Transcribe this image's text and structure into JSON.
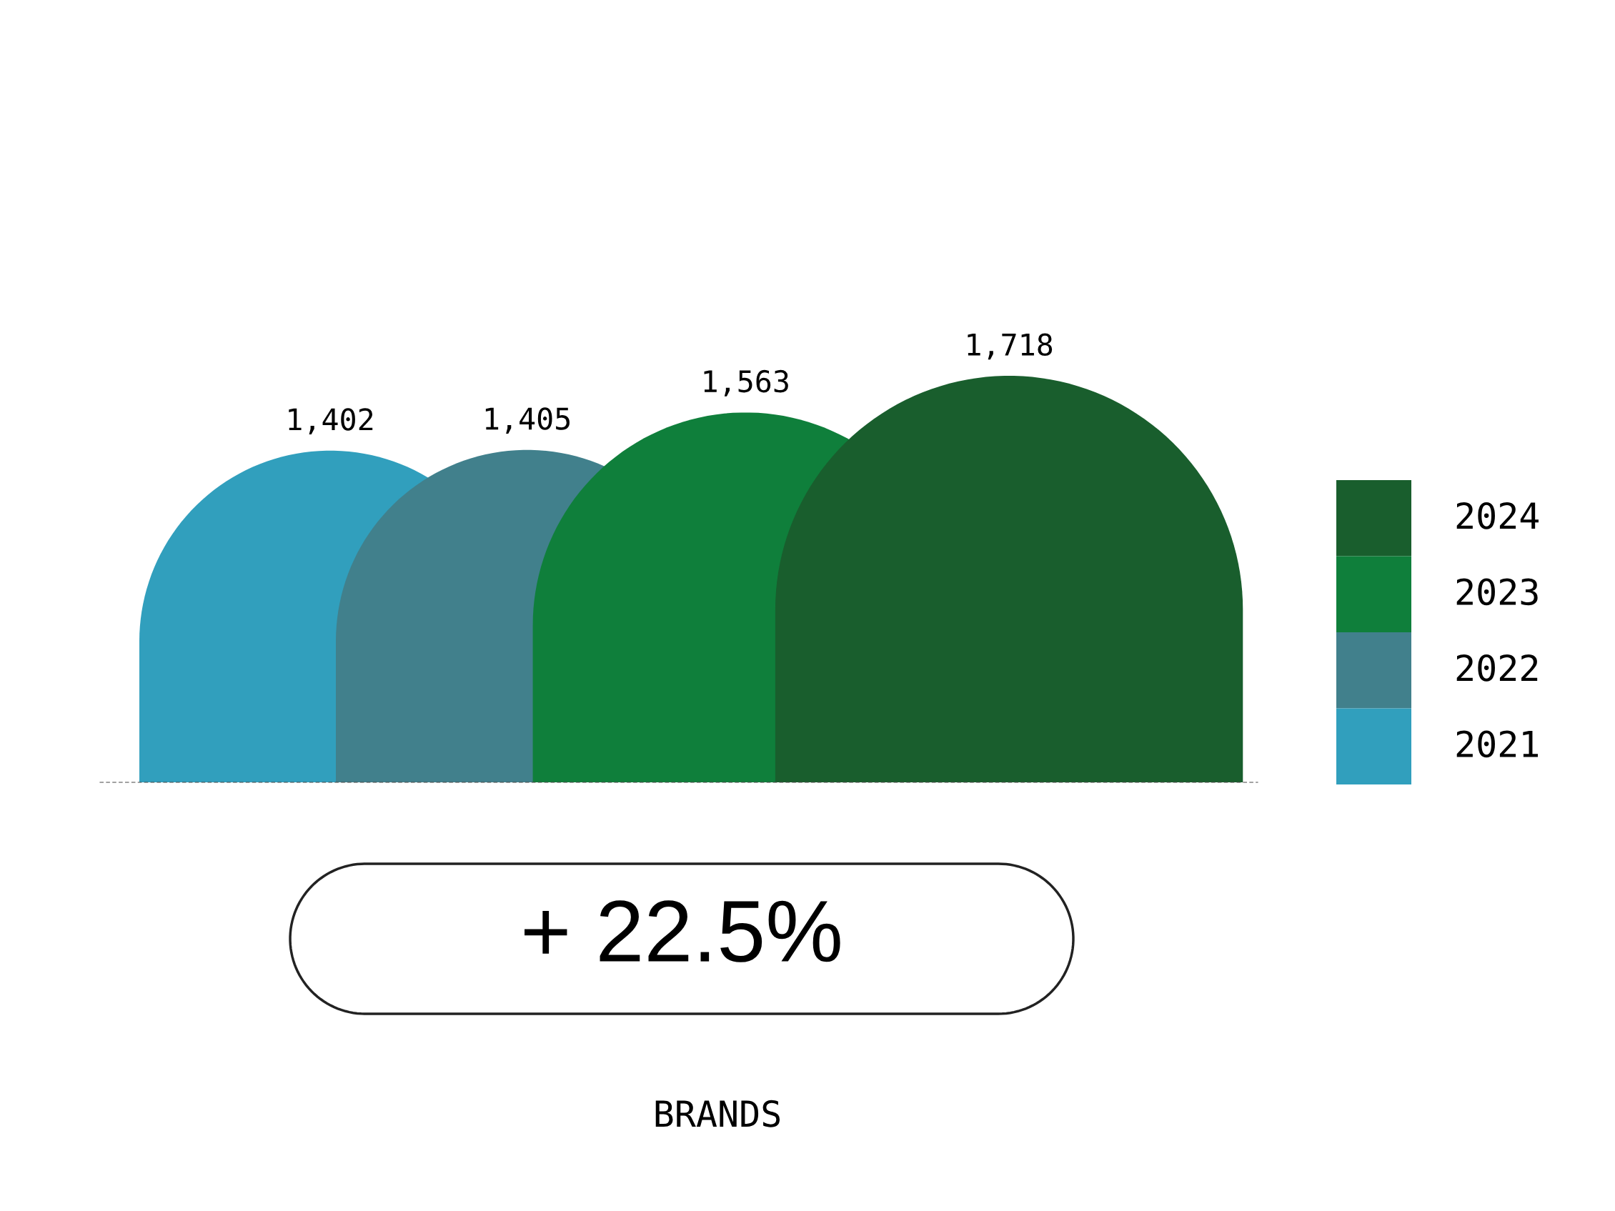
{
  "chart_data": {
    "type": "bar",
    "categories": [
      null
    ],
    "series": [
      {
        "name": "2021",
        "color": "#319fbd",
        "values": [
          1402
        ],
        "value_labels": [
          "1,402"
        ]
      },
      {
        "name": "2022",
        "color": "#41808c",
        "values": [
          1405
        ],
        "value_labels": [
          "1,405"
        ]
      },
      {
        "name": "2023",
        "color": "#0f7f3b",
        "values": [
          1563
        ],
        "value_labels": [
          "1,563"
        ]
      },
      {
        "name": "2024",
        "color": "#195e2d",
        "values": [
          1718
        ],
        "value_labels": [
          "1,718"
        ]
      }
    ],
    "legend": "right",
    "annotations": [
      "+ 22.5%",
      "BRANDS"
    ]
  }
}
